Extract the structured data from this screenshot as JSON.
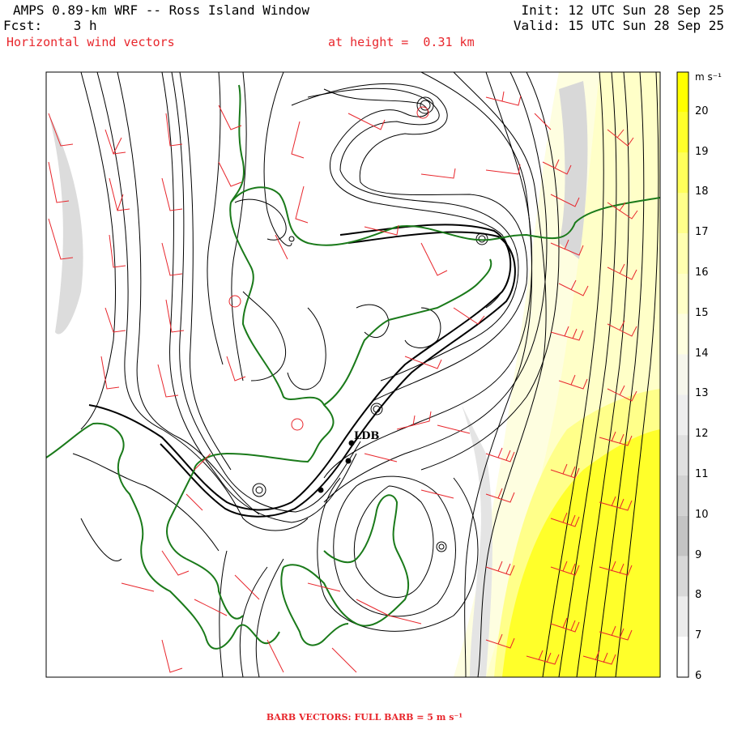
{
  "header": {
    "title": "AMPS 0.89-km WRF -- Ross Island Window",
    "fcst": "Fcst:    3 h",
    "field": "Horizontal wind vectors",
    "height": "at height =  0.31 km",
    "init": "Init: 12 UTC Sun 28 Sep 25",
    "valid": "Valid: 15 UTC Sun 28 Sep 25"
  },
  "colorbar": {
    "unit": "m s⁻¹",
    "levels": [
      "20",
      "19",
      "18",
      "17",
      "16",
      "15",
      "14",
      "13",
      "12",
      "11",
      "10",
      "9",
      "8",
      "7",
      "6"
    ],
    "colors": [
      "#ffff00",
      "#ffff2a",
      "#ffff5a",
      "#ffff8a",
      "#ffffb0",
      "#ffffc8",
      "#fefee0",
      "#f6f6ec",
      "#eeeeee",
      "#e0e0e0",
      "#d2d2d2",
      "#c4c4c4",
      "#d8d8d8",
      "#ececec",
      "#ffffff"
    ]
  },
  "site": {
    "label": "LDB"
  },
  "footer": "BARB VECTORS:  FULL BARB = 5 m s⁻¹",
  "colors": {
    "barb": "#e8262c",
    "coast": "#1a7a1a",
    "stream": "#000000"
  }
}
